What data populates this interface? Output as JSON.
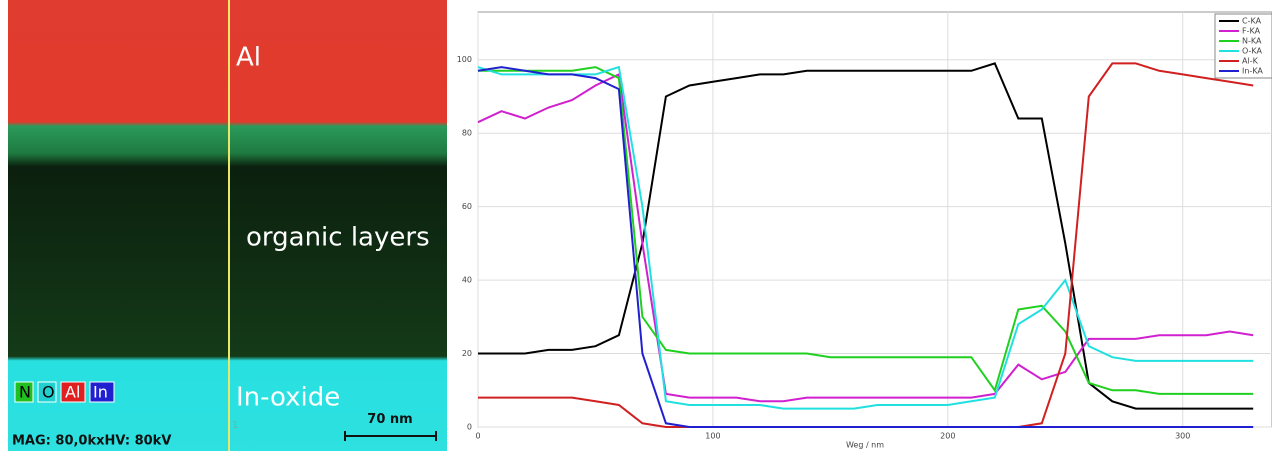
{
  "image": {
    "layers": [
      "Al",
      "organic layers",
      "In-oxide"
    ],
    "legend": [
      "N",
      "O",
      "Al",
      "In"
    ],
    "scale_bar": "70 nm",
    "footer": "MAG: 80,0kxHV: 80kV",
    "marker": "1"
  },
  "chart_data": {
    "type": "line",
    "x_label": "Weg / nm",
    "x": [
      0,
      10,
      20,
      30,
      40,
      50,
      60,
      70,
      80,
      90,
      100,
      110,
      120,
      130,
      140,
      150,
      160,
      170,
      180,
      190,
      200,
      210,
      220,
      230,
      240,
      250,
      260,
      270,
      280,
      290,
      300,
      310,
      320,
      330
    ],
    "xlim": [
      0,
      338
    ],
    "xticks": [
      0,
      100,
      200,
      300
    ],
    "ylim": [
      0,
      113
    ],
    "yticks": [
      0,
      20,
      40,
      60,
      80,
      100
    ],
    "grid": true,
    "legend": "top-right",
    "series": [
      {
        "name": "C-KA",
        "color": "#000000",
        "values": [
          20,
          20,
          20,
          21,
          21,
          22,
          25,
          50,
          90,
          93,
          94,
          95,
          96,
          96,
          97,
          97,
          97,
          97,
          97,
          97,
          97,
          97,
          99,
          84,
          84,
          50,
          12,
          7,
          5,
          5,
          5,
          5,
          5,
          5
        ]
      },
      {
        "name": "F-KA",
        "color": "#d020d0",
        "values": [
          83,
          86,
          84,
          87,
          89,
          93,
          96,
          50,
          9,
          8,
          8,
          8,
          7,
          7,
          8,
          8,
          8,
          8,
          8,
          8,
          8,
          8,
          9,
          17,
          13,
          15,
          24,
          24,
          24,
          25,
          25,
          25,
          26,
          25
        ]
      },
      {
        "name": "N-KA",
        "color": "#20d020",
        "values": [
          97,
          97,
          97,
          97,
          97,
          98,
          95,
          30,
          21,
          20,
          20,
          20,
          20,
          20,
          20,
          19,
          19,
          19,
          19,
          19,
          19,
          19,
          10,
          32,
          33,
          26,
          12,
          10,
          10,
          9,
          9,
          9,
          9,
          9
        ]
      },
      {
        "name": "O-KA",
        "color": "#20e0e0",
        "values": [
          98,
          96,
          96,
          96,
          96,
          96,
          98,
          60,
          7,
          6,
          6,
          6,
          6,
          5,
          5,
          5,
          5,
          6,
          6,
          6,
          6,
          7,
          8,
          28,
          32,
          40,
          22,
          19,
          18,
          18,
          18,
          18,
          18,
          18
        ]
      },
      {
        "name": "Al-K",
        "color": "#d02020",
        "values": [
          8,
          8,
          8,
          8,
          8,
          7,
          6,
          1,
          0,
          0,
          0,
          0,
          0,
          0,
          0,
          0,
          0,
          0,
          0,
          0,
          0,
          0,
          0,
          0,
          1,
          20,
          90,
          99,
          99,
          97,
          96,
          95,
          94,
          93
        ]
      },
      {
        "name": "In-KA",
        "color": "#2020d0",
        "values": [
          97,
          98,
          97,
          96,
          96,
          95,
          92,
          20,
          1,
          0,
          0,
          0,
          0,
          0,
          0,
          0,
          0,
          0,
          0,
          0,
          0,
          0,
          0,
          0,
          0,
          0,
          0,
          0,
          0,
          0,
          0,
          0,
          0,
          0
        ]
      }
    ]
  }
}
